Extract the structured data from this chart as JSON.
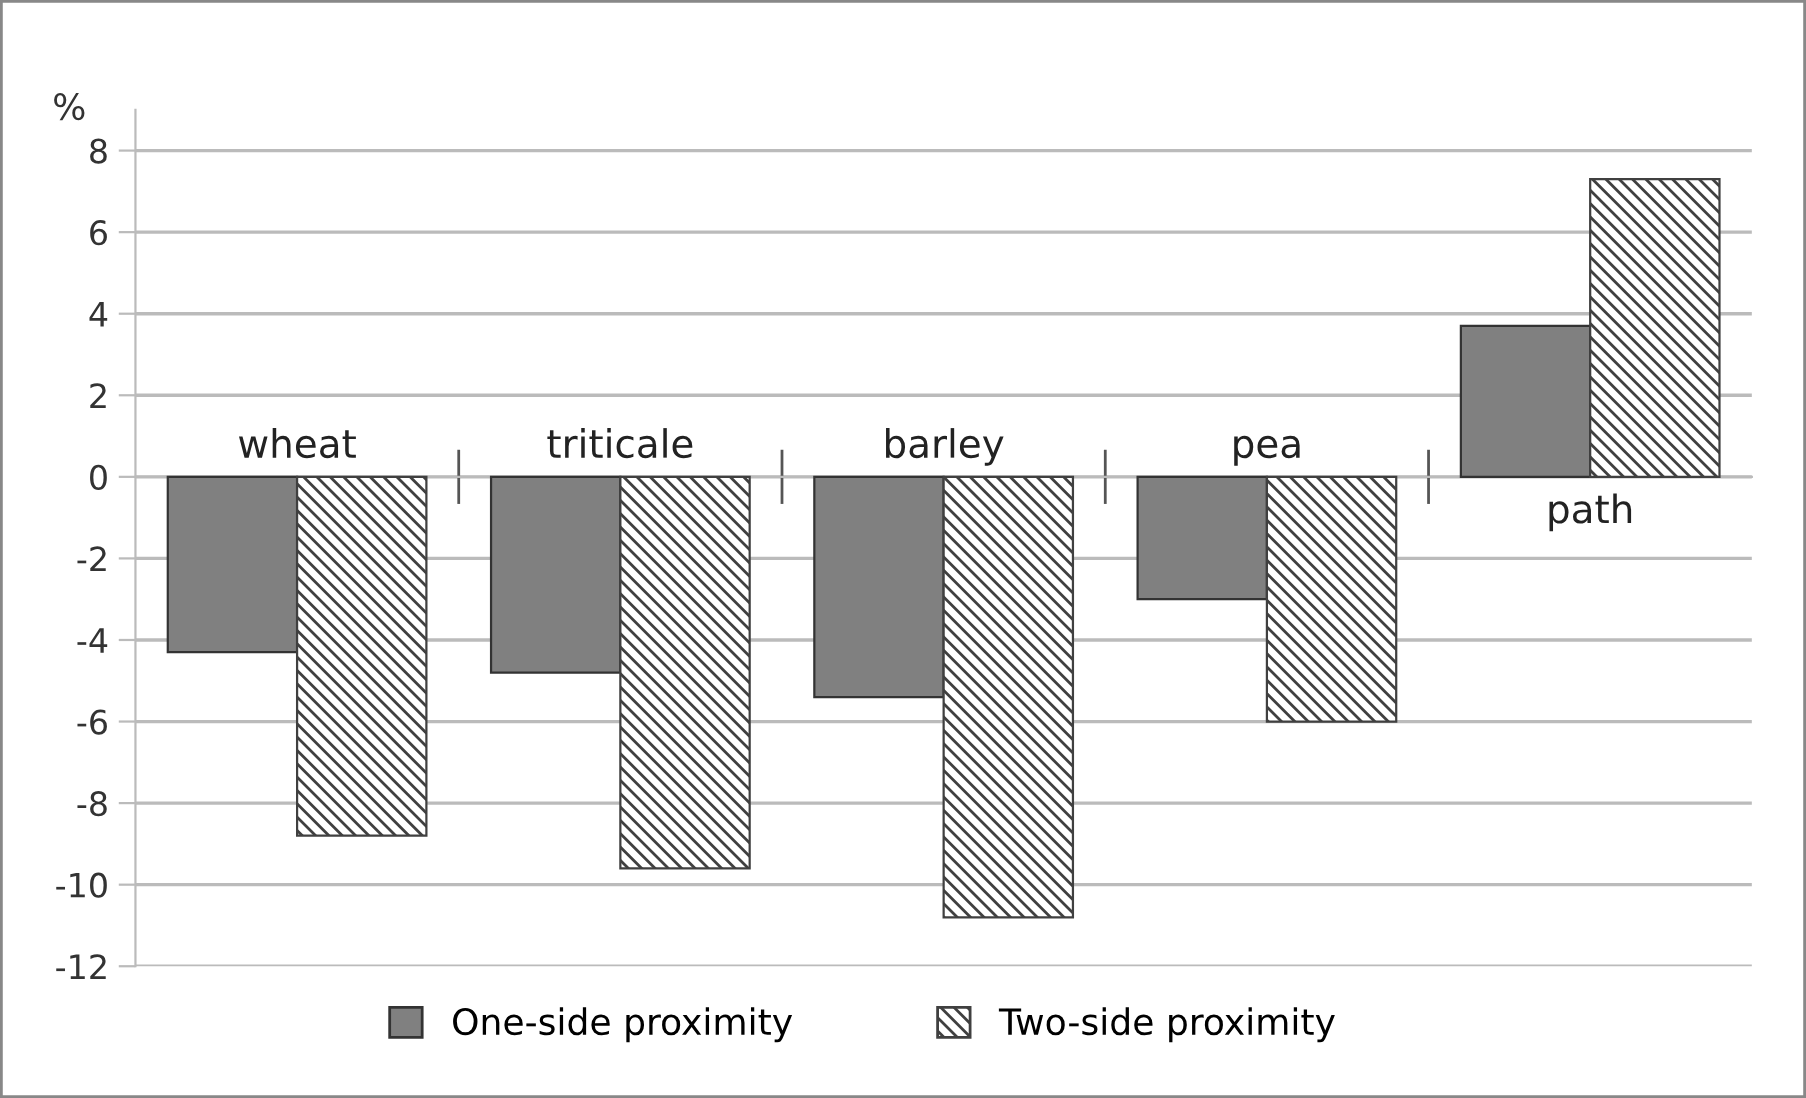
{
  "chart_data": {
    "type": "bar",
    "ylabel": "%",
    "categories": [
      "wheat",
      "triticale",
      "barley",
      "pea",
      "path"
    ],
    "series": [
      {
        "name": "One-side proximity",
        "color": "#808080",
        "values": [
          -4.3,
          -4.8,
          -5.4,
          -3.0,
          3.7
        ]
      },
      {
        "name": "Two-side proximity",
        "color": "#404040",
        "values": [
          -8.8,
          -9.6,
          -10.8,
          -6.0,
          7.3
        ]
      }
    ],
    "ylim": [
      -12,
      9
    ],
    "yticks": [
      -12,
      -10,
      -8,
      -6,
      -4,
      -2,
      0,
      2,
      4,
      6,
      8
    ],
    "grid": "y",
    "legend": "bottom"
  }
}
